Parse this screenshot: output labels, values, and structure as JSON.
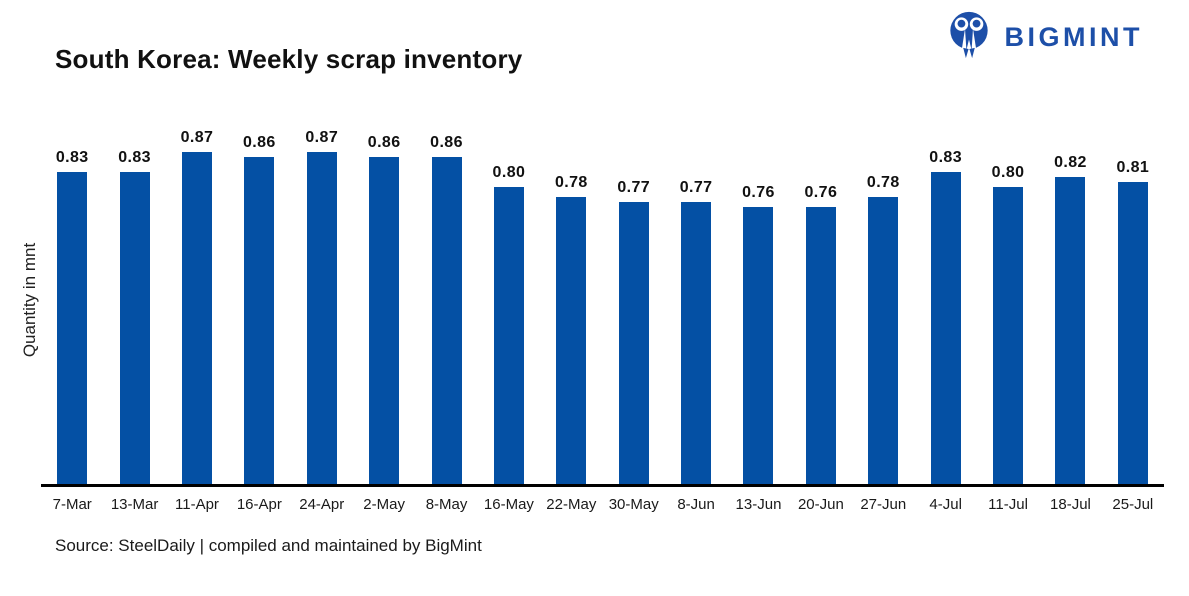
{
  "header": {
    "title": "South Korea: Weekly scrap inventory",
    "logo": {
      "text": "BIGMINT",
      "icon": "bigmint-people-icon"
    }
  },
  "chart_data": {
    "type": "bar",
    "title": "South Korea: Weekly scrap inventory",
    "xlabel": "",
    "ylabel": "Quantity in mnt",
    "categories": [
      "7-Mar",
      "13-Mar",
      "11-Apr",
      "16-Apr",
      "24-Apr",
      "2-May",
      "8-May",
      "16-May",
      "22-May",
      "30-May",
      "8-Jun",
      "13-Jun",
      "20-Jun",
      "27-Jun",
      "4-Jul",
      "11-Jul",
      "18-Jul",
      "25-Jul"
    ],
    "values": [
      0.83,
      0.83,
      0.87,
      0.86,
      0.87,
      0.86,
      0.86,
      0.8,
      0.78,
      0.77,
      0.77,
      0.76,
      0.76,
      0.78,
      0.83,
      0.8,
      0.82,
      0.81
    ],
    "value_labels": [
      "0.83",
      "0.83",
      "0.87",
      "0.86",
      "0.87",
      "0.86",
      "0.86",
      "0.80",
      "0.78",
      "0.77",
      "0.77",
      "0.76",
      "0.76",
      "0.78",
      "0.83",
      "0.80",
      "0.82",
      "0.81"
    ],
    "ylim": [
      0.205,
      0.945
    ],
    "grid": false,
    "legend": false,
    "data_label_position": "above-bars",
    "bar_color": "#0450a4"
  },
  "footer": {
    "source": "Source: SteelDaily | compiled and maintained by BigMint"
  },
  "colors": {
    "bar": "#0450a4",
    "logo_blue": "#1d4fa8",
    "axis_line": "#000000",
    "text": "#1a1a1a"
  }
}
